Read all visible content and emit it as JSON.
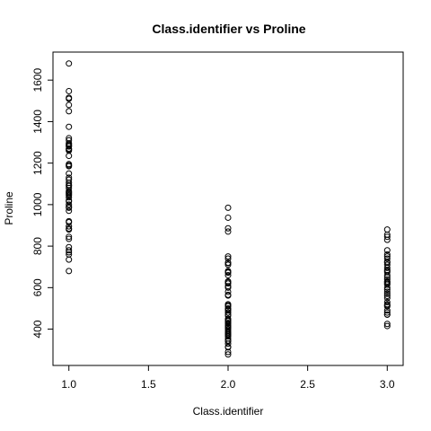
{
  "chart_data": {
    "type": "scatter",
    "title": "Class.identifier vs Proline",
    "xlabel": "Class.identifier",
    "ylabel": "Proline",
    "xlim": [
      0.9,
      3.1
    ],
    "ylim": [
      225,
      1735
    ],
    "xticks": [
      1.0,
      1.5,
      2.0,
      2.5,
      3.0
    ],
    "xtick_labels": [
      "1.0",
      "1.5",
      "2.0",
      "2.5",
      "3.0"
    ],
    "yticks": [
      400,
      600,
      800,
      1000,
      1200,
      1400,
      1600
    ],
    "ytick_labels": [
      "400",
      "600",
      "800",
      "1000",
      "1200",
      "1400",
      "1600"
    ],
    "grid": false,
    "series": [
      {
        "x": 1.0,
        "y": [
          1680,
          1547,
          1515,
          1510,
          1480,
          1450,
          1375,
          1320,
          1310,
          1295,
          1290,
          1285,
          1280,
          1270,
          1265,
          1260,
          1235,
          1195,
          1190,
          1185,
          1150,
          1130,
          1120,
          1105,
          1095,
          1090,
          1080,
          1065,
          1060,
          1055,
          1050,
          1045,
          1035,
          1020,
          1015,
          1000,
          990,
          985,
          970,
          920,
          915,
          895,
          885,
          880,
          845,
          835,
          795,
          780,
          770,
          760,
          735,
          680
        ]
      },
      {
        "x": 2.0,
        "y": [
          985,
          937,
          886,
          870,
          750,
          740,
          720,
          718,
          710,
          680,
          675,
          672,
          660,
          630,
          625,
          620,
          607,
          600,
          580,
          565,
          562,
          520,
          515,
          510,
          500,
          495,
          490,
          480,
          470,
          465,
          450,
          445,
          440,
          438,
          430,
          428,
          420,
          415,
          410,
          407,
          400,
          392,
          385,
          380,
          375,
          372,
          365,
          355,
          345,
          342,
          330,
          315,
          312,
          290,
          278
        ]
      },
      {
        "x": 3.0,
        "y": [
          880,
          855,
          845,
          830,
          780,
          760,
          750,
          740,
          725,
          720,
          710,
          695,
          685,
          680,
          675,
          660,
          650,
          640,
          630,
          625,
          620,
          615,
          600,
          590,
          580,
          570,
          560,
          550,
          530,
          520,
          515,
          510,
          490,
          480,
          470,
          470,
          425,
          415
        ]
      }
    ]
  }
}
